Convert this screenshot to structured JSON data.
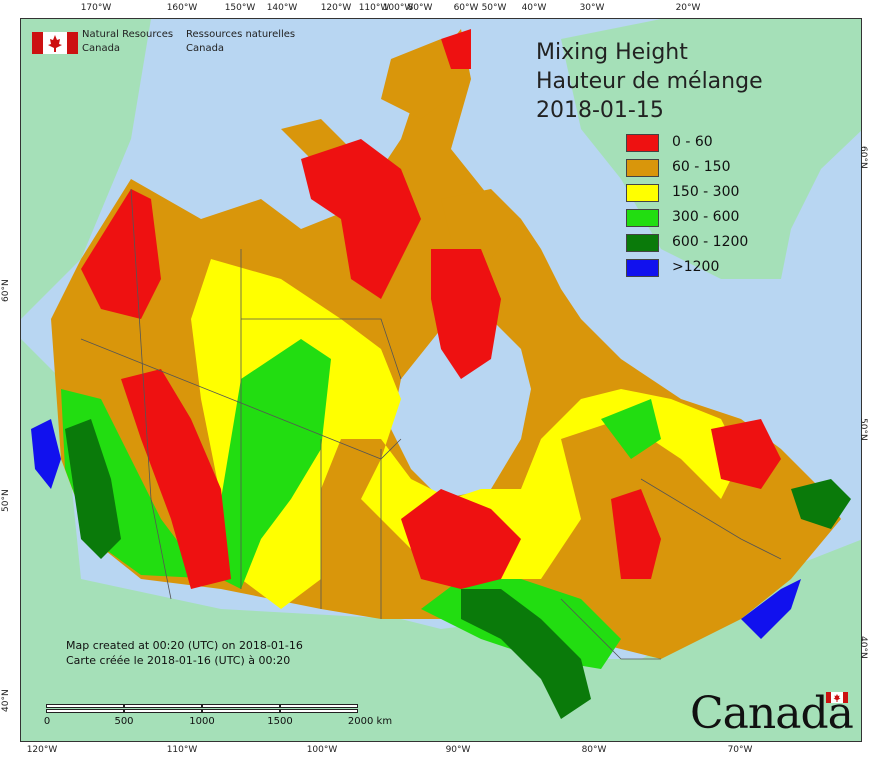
{
  "map": {
    "title_en": "Mixing Height",
    "title_fr": "Hauteur de mélange",
    "date": "2018-01-15",
    "legend": [
      {
        "label": "0 - 60",
        "color": "#ee1111"
      },
      {
        "label": "60 - 150",
        "color": "#d9960b"
      },
      {
        "label": "150 - 300",
        "color": "#ffff00"
      },
      {
        "label": "300 - 600",
        "color": "#22dd11"
      },
      {
        "label": ">1200",
        "color": "#1111ee"
      }
    ],
    "legend_600": {
      "label": "600 - 1200",
      "color": "#0a7a0a"
    },
    "colors": {
      "ocean": "#b8d6f2",
      "land_outside": "#a5e0b8",
      "greenland": "#a5e0b8",
      "low": "#ee1111",
      "mid": "#d9960b",
      "high": "#ffff00",
      "higher": "#22dd11",
      "very_high": "#0a7a0a",
      "max": "#1111ee"
    }
  },
  "agency": {
    "name_en_line1": "Natural Resources",
    "name_en_line2": "Canada",
    "name_fr_line1": "Ressources naturelles",
    "name_fr_line2": "Canada"
  },
  "credit": {
    "line_en": "Map created at 00:20 (UTC) on 2018-01-16",
    "line_fr": "Carte créée le 2018-01-16 (UTC) à 00:20"
  },
  "scale": {
    "labels": [
      "0",
      "500",
      "1000",
      "1500",
      "2000  km"
    ]
  },
  "wordmark": "Canada",
  "graticule": {
    "top": [
      "170°W",
      "160°W",
      "150°W",
      "140°W",
      "120°W",
      "110°W",
      "100°W",
      "80°W",
      "60°W",
      "50°W",
      "40°W",
      "30°W",
      "20°W"
    ],
    "bottom": [
      "120°W",
      "110°W",
      "100°W",
      "90°W",
      "80°W",
      "70°W"
    ],
    "left": [
      "60°N",
      "50°N",
      "40°N"
    ],
    "right": [
      "60°N",
      "50°N",
      "40°N"
    ]
  }
}
